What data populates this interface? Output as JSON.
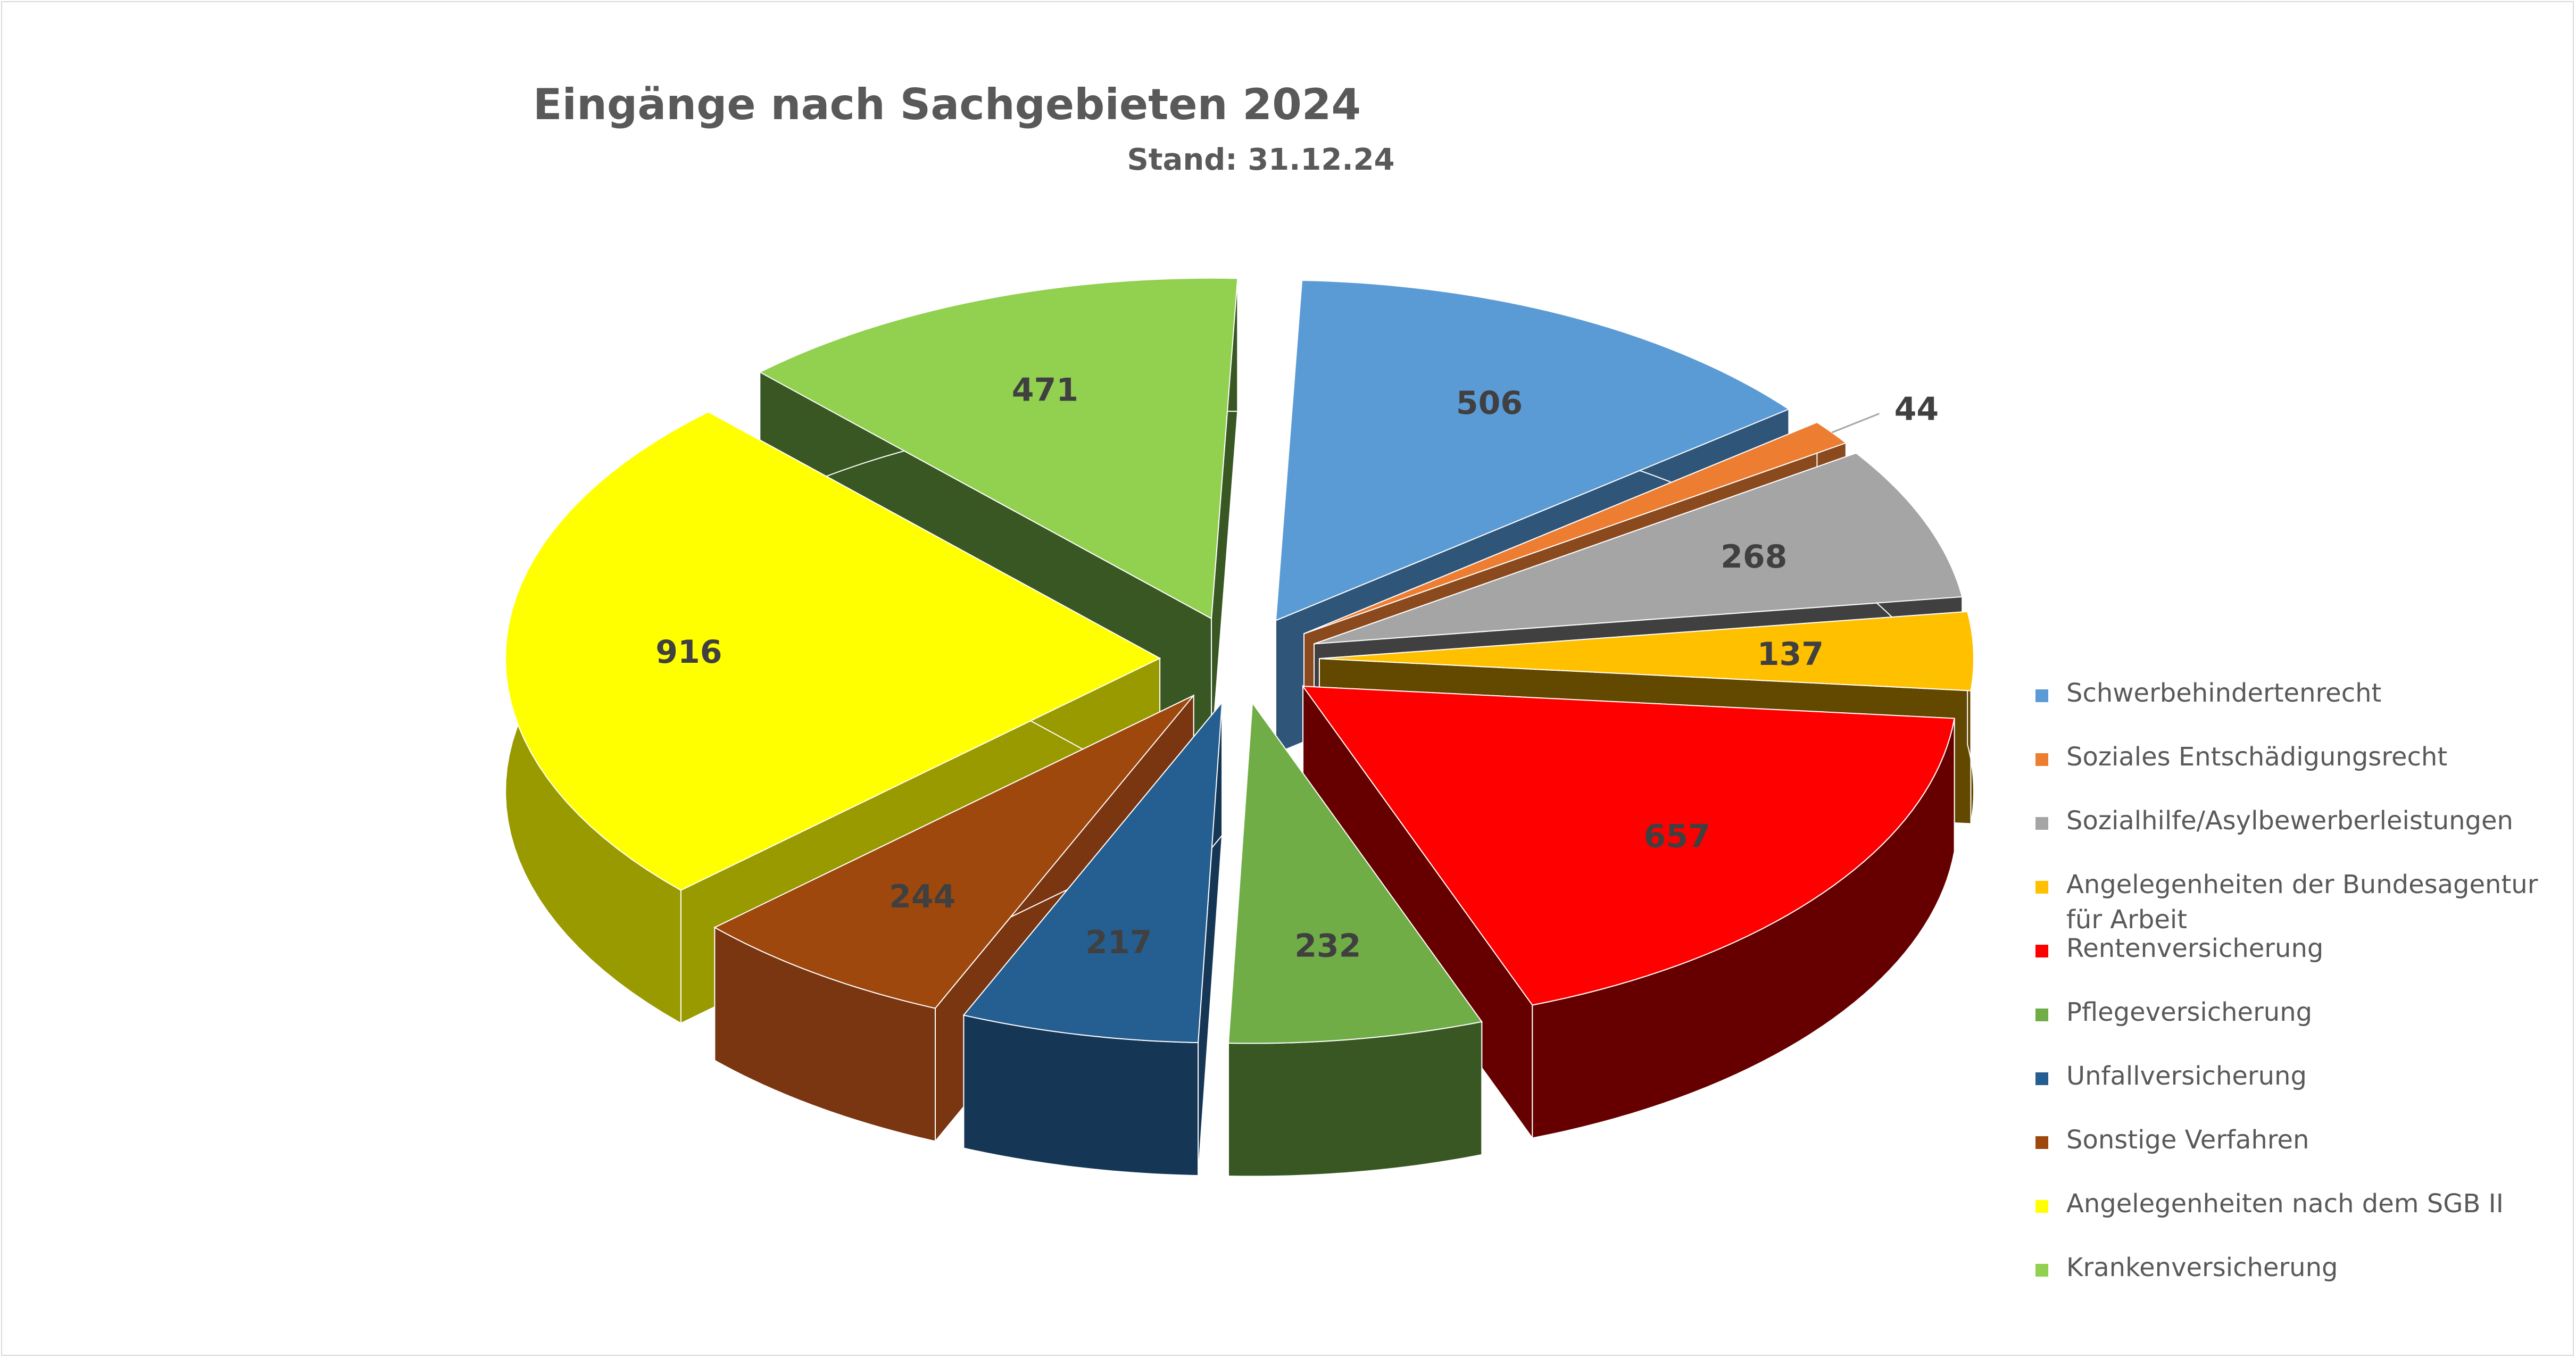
{
  "chart_data": {
    "type": "pie",
    "title": "Eingänge nach Sachgebieten 2024",
    "subtitle": "Stand: 31.12.24",
    "style": "3d-exploded",
    "legend_position": "right",
    "categories": [
      "Schwerbehindertenrecht",
      "Soziales Entschädigungsrecht",
      "Sozialhilfe/Asylbewerberleistungen",
      "Angelegenheiten der Bundesagentur für Arbeit",
      "Rentenversicherung",
      "Pflegeversicherung",
      "Unfallversicherung",
      "Sonstige Verfahren",
      "Angelegenheiten nach dem SGB II",
      "Krankenversicherung"
    ],
    "values": [
      506,
      44,
      268,
      137,
      657,
      232,
      217,
      244,
      916,
      471
    ],
    "colors": [
      "#5b9bd5",
      "#ed7d31",
      "#a5a5a5",
      "#ffc000",
      "#ff0000",
      "#70ad47",
      "#255e91",
      "#9e480e",
      "#ffff00",
      "#92d050"
    ],
    "side_colors": [
      "#2f5579",
      "#8a4a1e",
      "#404040",
      "#634800",
      "#660000",
      "#385723",
      "#163656",
      "#7a3511",
      "#999900",
      "#385723"
    ]
  }
}
